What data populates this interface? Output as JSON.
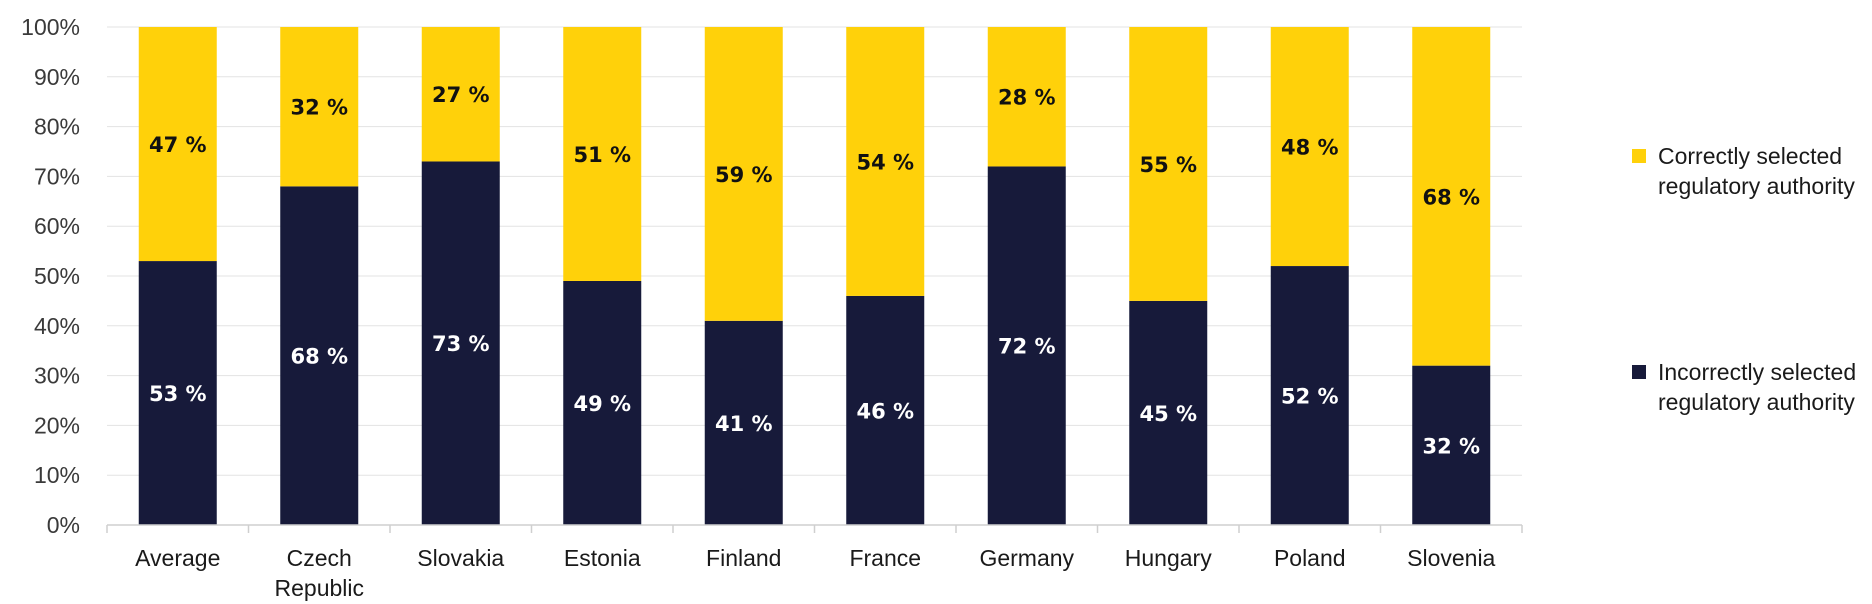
{
  "chart_data": {
    "type": "bar",
    "stacked": true,
    "categories": [
      "Average",
      "Czech\nRepublic",
      "Slovakia",
      "Estonia",
      "Finland",
      "France",
      "Germany",
      "Hungary",
      "Poland",
      "Slovenia"
    ],
    "series": [
      {
        "name": "Incorrectly selected regulatory authority",
        "color": "#171a3a",
        "label_color": "#ffffff",
        "values": [
          53,
          68,
          73,
          49,
          41,
          46,
          72,
          45,
          52,
          32
        ],
        "labels": [
          "53 %",
          "68 %",
          "73 %",
          "49 %",
          "41 %",
          "46 %",
          "72 %",
          "45 %",
          "52 %",
          "32 %"
        ]
      },
      {
        "name": "Correctly selected regulatory authority",
        "color": "#ffd10a",
        "label_color": "#111111",
        "values": [
          47,
          32,
          27,
          51,
          59,
          54,
          28,
          55,
          48,
          68
        ],
        "labels": [
          "47 %",
          "32 %",
          "27 %",
          "51 %",
          "59 %",
          "54 %",
          "28 %",
          "55 %",
          "48 %",
          "68 %"
        ]
      }
    ],
    "ylim": [
      0,
      100
    ],
    "y_ticks": [
      "0%",
      "10%",
      "20%",
      "30%",
      "40%",
      "50%",
      "60%",
      "70%",
      "80%",
      "90%",
      "100%"
    ],
    "grid": true,
    "legend_position": "right"
  },
  "legend": {
    "correct_label": "Correctly selected regulatory authority",
    "incorrect_label": "Incorrectly selected regulatory authority"
  }
}
